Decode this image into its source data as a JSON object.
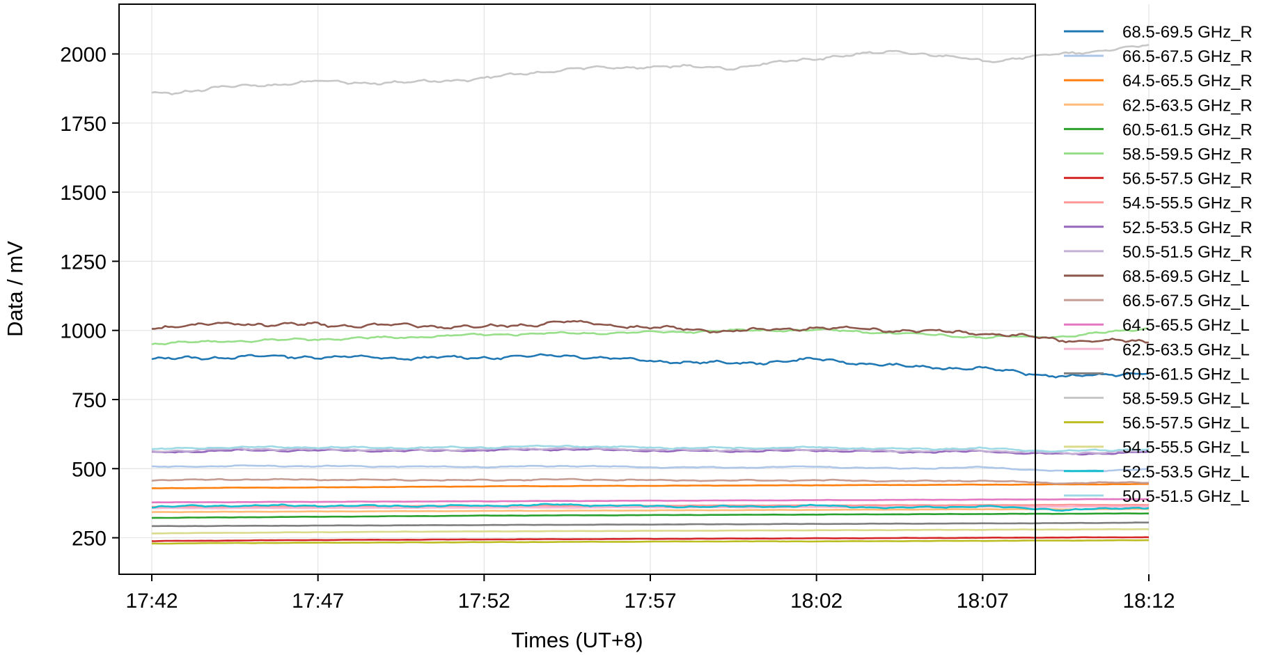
{
  "chart_data": {
    "type": "line",
    "title": "",
    "xlabel": "Times (UT+8)",
    "ylabel": "Data / mV",
    "x_tick_labels": [
      "17:42",
      "17:47",
      "17:52",
      "17:57",
      "18:02",
      "18:07",
      "18:12"
    ],
    "y_tick_labels": [
      "250",
      "500",
      "750",
      "1000",
      "1250",
      "1500",
      "1750",
      "2000"
    ],
    "x_range_minutes": [
      0,
      32.5
    ],
    "ylim": [
      118,
      2180
    ],
    "grid": true,
    "legend_position": "right, outside plot",
    "x": [
      0,
      2.5,
      5,
      7.5,
      10,
      12.5,
      15,
      17.5,
      20,
      22.5,
      25,
      27.5,
      30
    ],
    "series": [
      {
        "name": "68.5-69.5 GHz_R",
        "color": "#1f77b4",
        "noise": 6,
        "values": [
          895,
          905,
          905,
          900,
          902,
          910,
          890,
          880,
          895,
          870,
          862,
          832,
          848
        ]
      },
      {
        "name": "66.5-67.5 GHz_R",
        "color": "#aec7e8",
        "noise": 2,
        "values": [
          506,
          510,
          509,
          508,
          506,
          510,
          505,
          504,
          507,
          500,
          505,
          490,
          498
        ]
      },
      {
        "name": "64.5-65.5 GHz_R",
        "color": "#ff7f0e",
        "noise": 0.6,
        "values": [
          429,
          431,
          432,
          434,
          436,
          437,
          438,
          439,
          440,
          441,
          442,
          443,
          444
        ]
      },
      {
        "name": "62.5-63.5 GHz_R",
        "color": "#ffbb78",
        "noise": 0.5,
        "values": [
          343,
          344,
          345,
          346,
          347,
          348,
          349,
          350,
          351,
          352,
          353,
          353,
          354
        ]
      },
      {
        "name": "60.5-61.5 GHz_R",
        "color": "#2ca02c",
        "noise": 0.5,
        "values": [
          322,
          324,
          326,
          328,
          330,
          331,
          332,
          333,
          334,
          335,
          336,
          337,
          338
        ]
      },
      {
        "name": "58.5-59.5 GHz_R",
        "color": "#98df8a",
        "noise": 4,
        "values": [
          952,
          962,
          968,
          975,
          985,
          990,
          992,
          1000,
          1002,
          990,
          975,
          978,
          1008
        ]
      },
      {
        "name": "56.5-57.5 GHz_R",
        "color": "#d62728",
        "noise": 0.5,
        "values": [
          238,
          240,
          242,
          243,
          244,
          245,
          246,
          247,
          248,
          249,
          250,
          251,
          252
        ]
      },
      {
        "name": "54.5-55.5 GHz_R",
        "color": "#ff9896",
        "noise": 0.6,
        "values": [
          362,
          363,
          364,
          365,
          365,
          366,
          366,
          367,
          367,
          368,
          368,
          369,
          369
        ]
      },
      {
        "name": "52.5-53.5 GHz_R",
        "color": "#9467bd",
        "noise": 3,
        "values": [
          558,
          566,
          566,
          564,
          566,
          570,
          565,
          563,
          566,
          560,
          562,
          552,
          560
        ]
      },
      {
        "name": "50.5-51.5 GHz_R",
        "color": "#c5b0d5",
        "noise": 3,
        "values": [
          563,
          571,
          570,
          568,
          570,
          574,
          569,
          567,
          570,
          564,
          566,
          556,
          564
        ]
      },
      {
        "name": "68.5-69.5 GHz_L",
        "color": "#8c564b",
        "noise": 7,
        "values": [
          1012,
          1025,
          1020,
          1018,
          1012,
          1030,
          1010,
          998,
          1010,
          1000,
          990,
          965,
          958
        ]
      },
      {
        "name": "66.5-67.5 GHz_L",
        "color": "#c49c94",
        "noise": 2,
        "values": [
          458,
          461,
          460,
          459,
          458,
          461,
          458,
          457,
          458,
          455,
          456,
          447,
          451
        ]
      },
      {
        "name": "64.5-65.5 GHz_L",
        "color": "#e377c2",
        "noise": 0.6,
        "values": [
          378,
          379,
          380,
          381,
          382,
          383,
          384,
          385,
          386,
          387,
          388,
          389,
          390
        ]
      },
      {
        "name": "62.5-63.5 GHz_L",
        "color": "#f7b6d2",
        "noise": 0.6,
        "values": [
          357,
          357,
          358,
          358,
          359,
          359,
          360,
          360,
          361,
          361,
          362,
          362,
          363
        ]
      },
      {
        "name": "60.5-61.5 GHz_L",
        "color": "#7f7f7f",
        "noise": 0.5,
        "values": [
          292,
          293,
          294,
          295,
          296,
          297,
          298,
          299,
          300,
          301,
          302,
          303,
          305
        ]
      },
      {
        "name": "58.5-59.5 GHz_L",
        "color": "#c7c7c7",
        "noise": 6,
        "values": [
          1855,
          1882,
          1900,
          1895,
          1912,
          1945,
          1955,
          1950,
          1985,
          2010,
          1975,
          2000,
          2030
        ]
      },
      {
        "name": "56.5-57.5 GHz_L",
        "color": "#bcbd22",
        "noise": 0.5,
        "values": [
          229,
          231,
          232,
          233,
          234,
          235,
          236,
          237,
          237,
          238,
          239,
          240,
          241
        ]
      },
      {
        "name": "54.5-55.5 GHz_L",
        "color": "#dbdb8d",
        "noise": 0.5,
        "values": [
          266,
          268,
          270,
          272,
          273,
          274,
          275,
          276,
          277,
          278,
          279,
          280,
          281
        ]
      },
      {
        "name": "52.5-53.5 GHz_L",
        "color": "#17becf",
        "noise": 3,
        "values": [
          362,
          366,
          366,
          365,
          366,
          370,
          364,
          362,
          366,
          358,
          364,
          350,
          360
        ]
      },
      {
        "name": "50.5-51.5 GHz_L",
        "color": "#9edae5",
        "noise": 3,
        "values": [
          570,
          578,
          577,
          575,
          577,
          582,
          576,
          574,
          577,
          571,
          573,
          563,
          571
        ]
      }
    ]
  }
}
